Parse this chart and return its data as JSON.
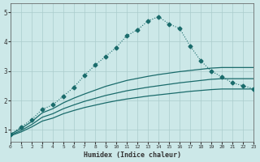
{
  "xlabel": "Humidex (Indice chaleur)",
  "background_color": "#cce8e8",
  "grid_color": "#aacccc",
  "line_color": "#1a6b6b",
  "xlim": [
    0,
    23
  ],
  "ylim": [
    0.6,
    5.3
  ],
  "xticks": [
    0,
    1,
    2,
    3,
    4,
    5,
    6,
    7,
    8,
    9,
    10,
    11,
    12,
    13,
    14,
    15,
    16,
    17,
    18,
    19,
    20,
    21,
    22,
    23
  ],
  "yticks": [
    1,
    2,
    3,
    4,
    5
  ],
  "series": [
    {
      "x": [
        0,
        1,
        2,
        3,
        4,
        5,
        6,
        7,
        8,
        9,
        10,
        11,
        12,
        13,
        14,
        15,
        16,
        17,
        18,
        19,
        20,
        21,
        22,
        23
      ],
      "y": [
        0.85,
        1.1,
        1.35,
        1.7,
        1.85,
        2.15,
        2.45,
        2.85,
        3.2,
        3.5,
        3.8,
        4.2,
        4.4,
        4.7,
        4.85,
        4.6,
        4.45,
        3.85,
        3.35,
        3.0,
        2.8,
        2.6,
        2.5,
        2.4
      ],
      "has_marker": true
    },
    {
      "x": [
        0,
        1,
        2,
        3,
        4,
        5,
        6,
        7,
        8,
        9,
        10,
        11,
        12,
        13,
        14,
        15,
        16,
        17,
        18,
        19,
        20,
        21,
        22,
        23
      ],
      "y": [
        0.85,
        1.05,
        1.28,
        1.58,
        1.72,
        1.92,
        2.08,
        2.22,
        2.35,
        2.48,
        2.58,
        2.68,
        2.75,
        2.82,
        2.88,
        2.93,
        2.98,
        3.02,
        3.06,
        3.1,
        3.12,
        3.12,
        3.12,
        3.12
      ],
      "has_marker": false
    },
    {
      "x": [
        0,
        1,
        2,
        3,
        4,
        5,
        6,
        7,
        8,
        9,
        10,
        11,
        12,
        13,
        14,
        15,
        16,
        17,
        18,
        19,
        20,
        21,
        22,
        23
      ],
      "y": [
        0.82,
        0.98,
        1.18,
        1.43,
        1.55,
        1.72,
        1.85,
        1.97,
        2.07,
        2.17,
        2.25,
        2.33,
        2.39,
        2.45,
        2.5,
        2.55,
        2.6,
        2.64,
        2.68,
        2.72,
        2.74,
        2.74,
        2.74,
        2.74
      ],
      "has_marker": false
    },
    {
      "x": [
        0,
        1,
        2,
        3,
        4,
        5,
        6,
        7,
        8,
        9,
        10,
        11,
        12,
        13,
        14,
        15,
        16,
        17,
        18,
        19,
        20,
        21,
        22,
        23
      ],
      "y": [
        0.8,
        0.93,
        1.1,
        1.3,
        1.4,
        1.55,
        1.66,
        1.76,
        1.84,
        1.92,
        1.99,
        2.05,
        2.1,
        2.15,
        2.19,
        2.23,
        2.27,
        2.31,
        2.34,
        2.37,
        2.39,
        2.39,
        2.39,
        2.39
      ],
      "has_marker": false
    }
  ]
}
